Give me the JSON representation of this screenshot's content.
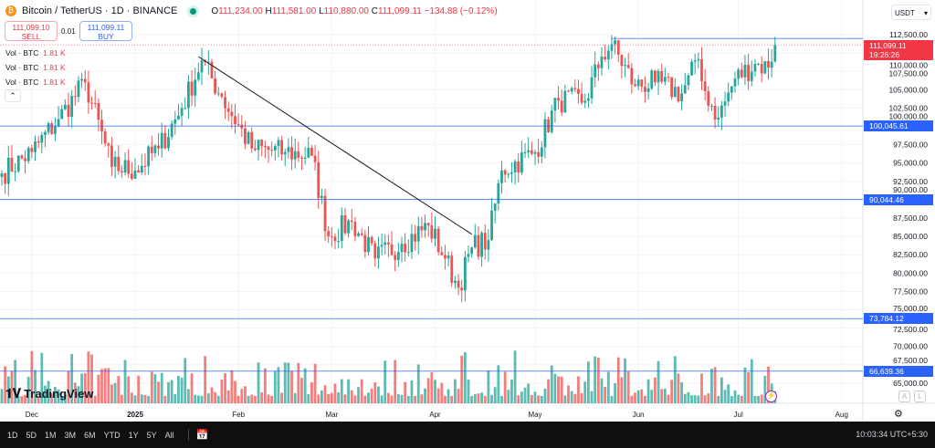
{
  "header": {
    "symbol": "Bitcoin / TetherUS · 1D · BINANCE",
    "open_label": "O",
    "open": "111,234.00",
    "high_label": "H",
    "high": "111,581.00",
    "low_label": "L",
    "low": "110,880.00",
    "close_label": "C",
    "close": "111,099.11",
    "change": "−134.88 (−0.12%)"
  },
  "trade": {
    "sell_price": "111,099.10",
    "sell_label": "SELL",
    "spread": "0.01",
    "buy_price": "111,099.11",
    "buy_label": "BUY"
  },
  "volume_legends": [
    {
      "label": "Vol · BTC",
      "value": "1.81 K"
    },
    {
      "label": "Vol · BTC",
      "value": "1.81 K"
    },
    {
      "label": "Vol · BTC",
      "value": "1.81 K"
    }
  ],
  "currency": "USDT",
  "price_tag": {
    "price": "111,099.11",
    "countdown": "19:26:26"
  },
  "level_tags": [
    "100,045.61",
    "90,044.46",
    "73,784.12",
    "66,639.36"
  ],
  "brand": "TradingView",
  "axis_buttons": [
    "A",
    "L"
  ],
  "timeframes": [
    "1D",
    "5D",
    "1M",
    "3M",
    "6M",
    "YTD",
    "1Y",
    "5Y",
    "All"
  ],
  "clock": "10:03:34 UTC+5:30",
  "colors": {
    "up": "#26a69a",
    "down": "#ef5350",
    "level": "#2962ff",
    "price_tag": "#f23645"
  },
  "chart_data": {
    "type": "candlestick",
    "title": "Bitcoin / TetherUS · 1D · BINANCE",
    "ylim": [
      63750,
      115000
    ],
    "yticks": [
      65000,
      67500,
      70000,
      72500,
      75000,
      77500,
      80000,
      82500,
      85000,
      87500,
      90000,
      92500,
      95000,
      97500,
      100000,
      102500,
      105000,
      107500,
      110000,
      112500
    ],
    "ytick_labels": [
      "65,000.00",
      "67,500.00",
      "70,000.00",
      "72,500.00",
      "75,000.00",
      "77,500.00",
      "80,000.00",
      "82,500.00",
      "85,000.00",
      "87,500.00",
      "90,000.00",
      "92,500.00",
      "95,000.00",
      "97,500.00",
      "100,000.00",
      "102,500.00",
      "105,000.00",
      "107,500.00",
      "110,000.00",
      "112,500.00"
    ],
    "xticks": [
      {
        "label": "Dec",
        "day": 9
      },
      {
        "label": "2025",
        "day": 40
      },
      {
        "label": "Feb",
        "day": 71
      },
      {
        "label": "Mar",
        "day": 99
      },
      {
        "label": "Apr",
        "day": 130
      },
      {
        "label": "May",
        "day": 160
      },
      {
        "label": "Jun",
        "day": 191
      },
      {
        "label": "Jul",
        "day": 221
      },
      {
        "label": "Aug",
        "day": 252
      }
    ],
    "close_anchors": [
      [
        0,
        93600
      ],
      [
        9,
        96500
      ],
      [
        17,
        101000
      ],
      [
        25,
        106000
      ],
      [
        33,
        94500
      ],
      [
        40,
        94000
      ],
      [
        47,
        97000
      ],
      [
        54,
        102500
      ],
      [
        60,
        109000
      ],
      [
        66,
        104000
      ],
      [
        75,
        97000
      ],
      [
        85,
        96500
      ],
      [
        93,
        96000
      ],
      [
        98,
        85000
      ],
      [
        105,
        87000
      ],
      [
        112,
        82000
      ],
      [
        120,
        84000
      ],
      [
        128,
        86500
      ],
      [
        133,
        82000
      ],
      [
        137,
        78000
      ],
      [
        141,
        83500
      ],
      [
        146,
        84500
      ],
      [
        150,
        94000
      ],
      [
        160,
        96500
      ],
      [
        167,
        103500
      ],
      [
        175,
        103500
      ],
      [
        180,
        109500
      ],
      [
        183,
        111200
      ],
      [
        190,
        105500
      ],
      [
        196,
        106000
      ],
      [
        204,
        104500
      ],
      [
        208,
        109000
      ],
      [
        211,
        104800
      ],
      [
        215,
        101200
      ],
      [
        220,
        106500
      ],
      [
        226,
        108500
      ],
      [
        230,
        108000
      ],
      [
        232,
        111099
      ]
    ],
    "horizontal_levels": [
      100045.61,
      90044.46,
      73784.12,
      66639.36
    ],
    "resistance_line": 111970,
    "trendline": [
      [
        59,
        109500
      ],
      [
        141,
        85300
      ]
    ],
    "last_price": 111099.11
  }
}
